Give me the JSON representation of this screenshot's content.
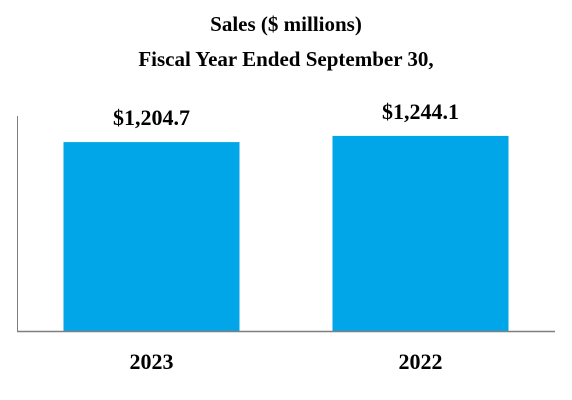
{
  "chart_data": {
    "type": "bar",
    "title": "Sales ($ millions)",
    "subtitle": "Fiscal Year Ended September 30,",
    "xlabel": "",
    "ylabel": "",
    "categories": [
      "2023",
      "2022"
    ],
    "values": [
      1204.7,
      1244.1
    ],
    "data_labels": [
      "$1,204.7",
      "$1,244.1"
    ],
    "ylim": [
      0,
      1450
    ],
    "grid": false,
    "legend": "none",
    "colors": {
      "bar": "#00A6E8",
      "axis": "#7f7f7f",
      "text": "#000000"
    }
  }
}
